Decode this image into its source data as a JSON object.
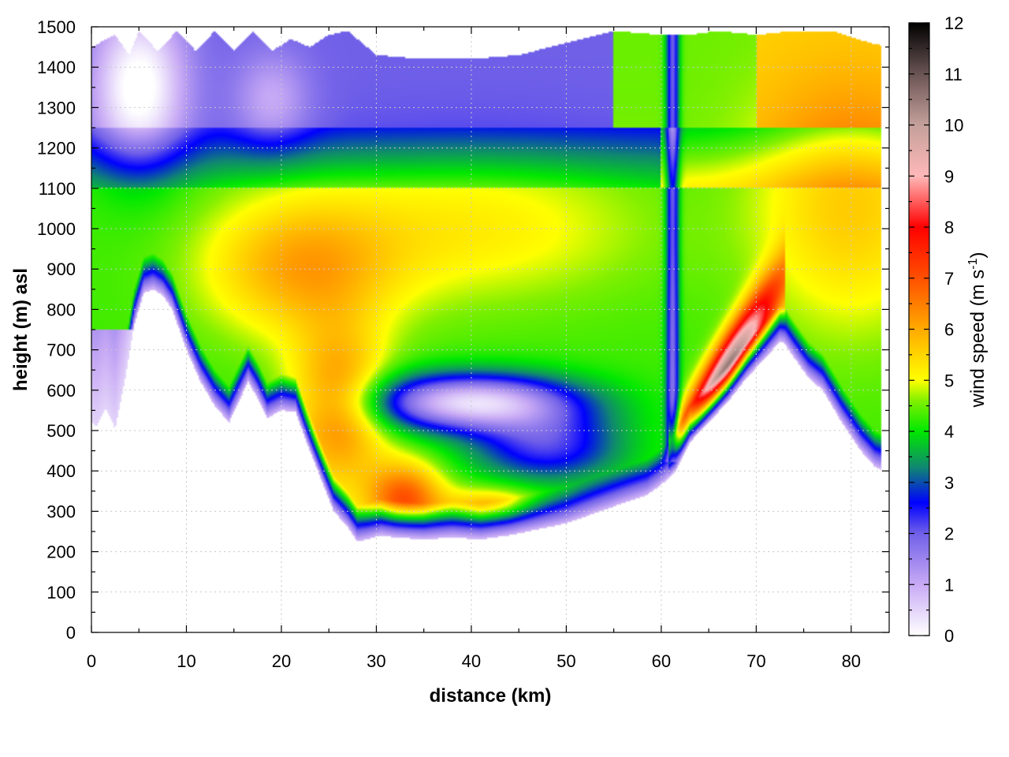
{
  "chart_data": {
    "type": "heatmap",
    "title": "",
    "xlabel": "distance (km)",
    "ylabel": "height (m) asl",
    "xlim": [
      0,
      84
    ],
    "ylim": [
      0,
      1500
    ],
    "x_ticks": [
      0,
      10,
      20,
      30,
      40,
      50,
      60,
      70,
      80
    ],
    "y_ticks": [
      0,
      100,
      200,
      300,
      400,
      500,
      600,
      700,
      800,
      900,
      1000,
      1100,
      1200,
      1300,
      1400,
      1500
    ],
    "x_tick_labels": [
      "0",
      "10",
      "20",
      "30",
      "40",
      "50",
      "60",
      "70",
      "80"
    ],
    "y_tick_labels": [
      "0",
      "100",
      "200",
      "300",
      "400",
      "500",
      "600",
      "700",
      "800",
      "900",
      "1000",
      "1100",
      "1200",
      "1300",
      "1400",
      "1500"
    ],
    "grid": true,
    "colorbar": {
      "label_main": "wind speed (m s",
      "label_sup": "-1",
      "label_close": ")",
      "range": [
        0,
        12
      ],
      "ticks": [
        0,
        1,
        2,
        3,
        4,
        5,
        6,
        7,
        8,
        9,
        10,
        11,
        12
      ],
      "tick_labels": [
        "0",
        "1",
        "2",
        "3",
        "4",
        "5",
        "6",
        "7",
        "8",
        "9",
        "10",
        "11",
        "12"
      ],
      "stops": [
        {
          "value": 0,
          "color": "#ffffff"
        },
        {
          "value": 1,
          "color": "#c8aaf5"
        },
        {
          "value": 2,
          "color": "#7060e8"
        },
        {
          "value": 2.6,
          "color": "#0000ff"
        },
        {
          "value": 3.3,
          "color": "#108870"
        },
        {
          "value": 4,
          "color": "#00e800"
        },
        {
          "value": 4.6,
          "color": "#80f000"
        },
        {
          "value": 5,
          "color": "#ffff00"
        },
        {
          "value": 6,
          "color": "#ffaa00"
        },
        {
          "value": 7,
          "color": "#ff5000"
        },
        {
          "value": 8,
          "color": "#ff0000"
        },
        {
          "value": 9,
          "color": "#ffb8b8"
        },
        {
          "value": 10,
          "color": "#c4a09a"
        },
        {
          "value": 11,
          "color": "#6a5454"
        },
        {
          "value": 12,
          "color": "#000000"
        }
      ]
    },
    "terrain_height_m": {
      "x_km": [
        0,
        0.5,
        1.5,
        2.5,
        3.5,
        4.5,
        5.5,
        6.5,
        7.5,
        8.5,
        10,
        11.5,
        13,
        14.5,
        15.5,
        16.5,
        17.5,
        18.5,
        20,
        21.5,
        22.5,
        24,
        25.5,
        27,
        28,
        29,
        30.5,
        32,
        35,
        38,
        41,
        44,
        47,
        50,
        53,
        56,
        58.5,
        60,
        61.5,
        63,
        65,
        67,
        69,
        71,
        72.5,
        73,
        74,
        75.5,
        77,
        79,
        81,
        82.5,
        83.5
      ],
      "height": [
        520,
        510,
        555,
        505,
        620,
        760,
        840,
        850,
        835,
        800,
        700,
        620,
        560,
        520,
        570,
        620,
        580,
        530,
        550,
        545,
        480,
        390,
        300,
        260,
        225,
        230,
        240,
        235,
        230,
        235,
        230,
        240,
        255,
        270,
        295,
        320,
        340,
        365,
        400,
        470,
        520,
        570,
        630,
        680,
        720,
        715,
        680,
        630,
        600,
        520,
        450,
        410,
        400
      ]
    },
    "model_top_m": {
      "x_km": [
        0,
        2.5,
        4,
        5,
        7,
        9,
        11,
        13,
        15,
        17,
        19,
        21,
        23,
        25,
        27,
        30,
        35,
        40,
        45,
        50,
        55,
        60,
        63,
        66,
        70,
        74,
        78,
        82,
        84
      ],
      "height": [
        1450,
        1480,
        1430,
        1490,
        1440,
        1490,
        1440,
        1490,
        1440,
        1490,
        1440,
        1470,
        1450,
        1480,
        1490,
        1430,
        1420,
        1420,
        1430,
        1460,
        1490,
        1480,
        1480,
        1490,
        1480,
        1490,
        1490,
        1460,
        1450
      ]
    },
    "wind_features": [
      {
        "name": "near-surface weak layer",
        "speed_ms": 1.0
      },
      {
        "name": "low-level jet core",
        "center_km": 67,
        "center_height_m": 620,
        "speed_ms": 10.5
      },
      {
        "name": "elevated weak-wind lobe",
        "center_km": 40,
        "center_height_m": 560,
        "speed_ms": 0.8
      },
      {
        "name": "western maximum",
        "center_km": 33,
        "center_height_m": 330,
        "speed_ms": 7.0
      },
      {
        "name": "mid-level band",
        "height_m": 950,
        "speed_ms": 5.5
      },
      {
        "name": "upper weak layer",
        "height_m": 1350,
        "speed_ms": 2.0
      },
      {
        "name": "narrow vertical low-speed column",
        "center_km": 61,
        "speed_ms": 2.5
      }
    ]
  }
}
